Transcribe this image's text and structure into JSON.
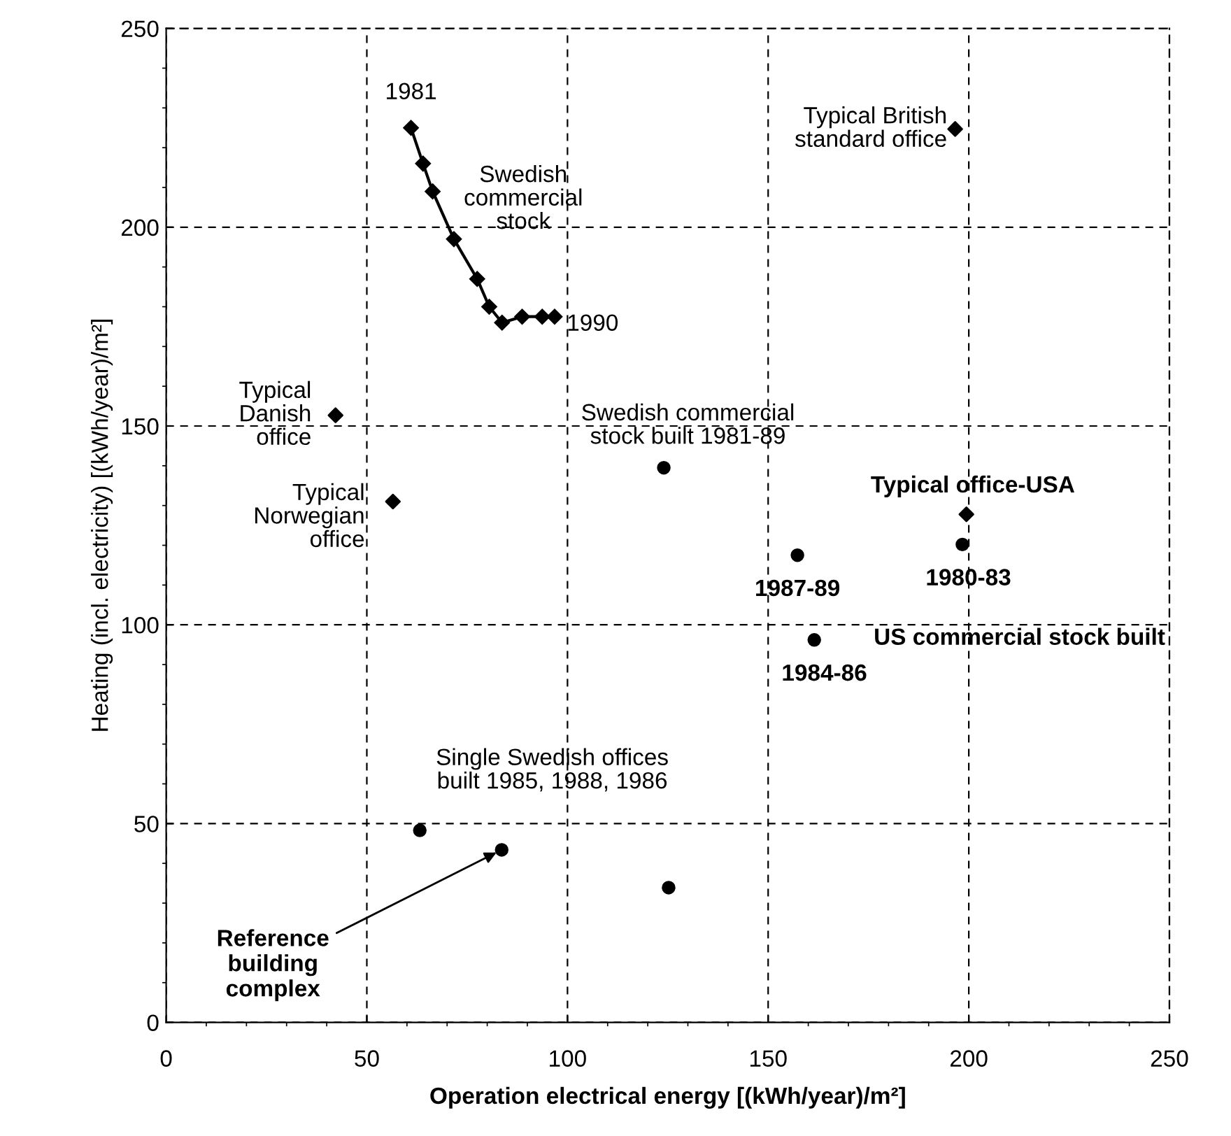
{
  "chart_data": {
    "type": "scatter",
    "xlabel": "Operation electrical energy [(kWh/year)/m²]",
    "ylabel": "Heating (incl. electricity) [(kWh/year)/m²]",
    "xlim": [
      0,
      250
    ],
    "ylim": [
      0,
      250
    ],
    "xticks": [
      0,
      50,
      100,
      150,
      200,
      250
    ],
    "yticks": [
      0,
      50,
      100,
      150,
      200,
      250
    ],
    "grid": true,
    "legend": false,
    "series": [
      {
        "name": "Swedish\ncommercial\nstock",
        "type": "line",
        "marker": "diamond",
        "line_style": "solid",
        "color": "#000000",
        "x": [
          61,
          64,
          66.4,
          71.7,
          77.5,
          80.5,
          83.7,
          88.7,
          93.7,
          96.8
        ],
        "values": [
          225,
          216,
          209,
          197,
          187,
          180,
          176,
          177.5,
          177.5,
          177.5
        ]
      },
      {
        "name": "Typical\nDanish\noffice",
        "marker": "diamond",
        "color": "#000000",
        "x": [
          42.2
        ],
        "values": [
          152.7
        ]
      },
      {
        "name": "Typical\nNorwegian\noffice",
        "marker": "diamond",
        "color": "#000000",
        "x": [
          56.5
        ],
        "values": [
          131
        ]
      },
      {
        "name": "Typical British\nstandard office",
        "marker": "diamond",
        "color": "#000000",
        "x": [
          196.6
        ],
        "values": [
          224.7
        ]
      },
      {
        "name": "Typical office-USA",
        "marker": "diamond",
        "color": "#000000",
        "x": [
          199.4
        ],
        "values": [
          127.8
        ]
      },
      {
        "name": "Swedish commercial\nstock built 1981-89",
        "marker": "circle",
        "color": "#000000",
        "x": [
          124
        ],
        "values": [
          139.5
        ]
      },
      {
        "name": "US commercial stock built",
        "marker": "circle",
        "color": "#000000",
        "x": [
          157.3,
          198.4,
          161.5
        ],
        "values": [
          117.5,
          120.2,
          96.2
        ]
      },
      {
        "name": "Single Swedish offices\nbuilt 1985, 1988, 1986",
        "marker": "circle",
        "color": "#000000",
        "x": [
          63.2,
          83.6,
          125.2
        ],
        "values": [
          48.3,
          43.4,
          33.9
        ]
      }
    ],
    "annotations": [
      {
        "text": "1981",
        "x": 61,
        "y": 225
      },
      {
        "text": "1990",
        "x": 96.8,
        "y": 177.5
      },
      {
        "text": "1987-89",
        "x": 157.3,
        "y": 117.5
      },
      {
        "text": "1980-83",
        "x": 198.4,
        "y": 120.2
      },
      {
        "text": "1984-86",
        "x": 161.5,
        "y": 96.2
      },
      {
        "text": "Reference\nbuilding\ncomplex",
        "x": 83.6,
        "y": 43.4
      }
    ]
  }
}
